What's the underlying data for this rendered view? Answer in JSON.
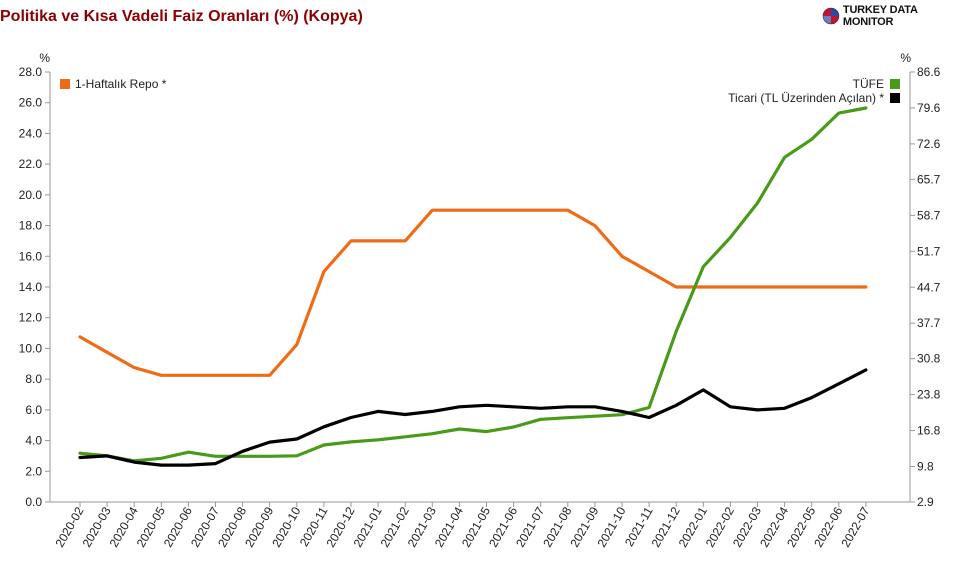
{
  "title": "Politika ve Kısa Vadeli Faiz Oranları (%) (Kopya)",
  "brand": {
    "name": "TURKEY DATA MONITOR"
  },
  "colors": {
    "repo": "#ef6c16",
    "tufe": "#4a9a1a",
    "ticari": "#000000",
    "title": "#8b0000",
    "axis": "#999999"
  },
  "chart_data": {
    "type": "line",
    "title": "Politika ve Kısa Vadeli Faiz Oranları (%) (Kopya)",
    "legend_placement": "top-left and top-right",
    "grid": false,
    "categories": [
      "2020-02",
      "2020-03",
      "2020-04",
      "2020-05",
      "2020-06",
      "2020-07",
      "2020-08",
      "2020-09",
      "2020-10",
      "2020-11",
      "2020-12",
      "2021-01",
      "2021-02",
      "2021-03",
      "2021-04",
      "2021-05",
      "2021-06",
      "2021-07",
      "2021-08",
      "2021-09",
      "2021-10",
      "2021-11",
      "2021-12",
      "2022-01",
      "2022-02",
      "2022-03",
      "2022-04",
      "2022-05",
      "2022-06",
      "2022-07"
    ],
    "y_left": {
      "label": "%",
      "min": 0.0,
      "max": 28.0,
      "ticks": [
        "0.0",
        "2.0",
        "4.0",
        "6.0",
        "8.0",
        "10.0",
        "12.0",
        "14.0",
        "16.0",
        "18.0",
        "20.0",
        "22.0",
        "24.0",
        "26.0",
        "28.0"
      ]
    },
    "y_right": {
      "label": "%",
      "min": 2.9,
      "max": 86.6,
      "ticks": [
        "2.9",
        "9.8",
        "16.8",
        "23.8",
        "30.8",
        "37.7",
        "44.7",
        "51.7",
        "58.7",
        "65.7",
        "72.6",
        "79.6",
        "86.6"
      ]
    },
    "series": [
      {
        "name": "1-Haftalık Repo *",
        "axis": "left",
        "values": [
          10.75,
          9.75,
          8.75,
          8.25,
          8.25,
          8.25,
          8.25,
          8.25,
          10.25,
          15.0,
          17.0,
          17.0,
          17.0,
          19.0,
          19.0,
          19.0,
          19.0,
          19.0,
          19.0,
          18.0,
          16.0,
          15.0,
          14.0,
          14.0,
          14.0,
          14.0,
          14.0,
          14.0,
          14.0,
          14.0
        ]
      },
      {
        "name": "TÜFE",
        "axis": "right",
        "values": [
          12.4,
          11.9,
          10.9,
          11.4,
          12.6,
          11.8,
          11.8,
          11.8,
          11.9,
          14.0,
          14.6,
          15.0,
          15.6,
          16.2,
          17.1,
          16.6,
          17.5,
          19.0,
          19.3,
          19.6,
          19.9,
          21.3,
          36.1,
          48.7,
          54.4,
          61.1,
          70.0,
          73.5,
          78.6,
          79.6
        ]
      },
      {
        "name": "Ticari (TL Üzerinden Açılan) *",
        "axis": "left",
        "values": [
          2.9,
          3.0,
          2.6,
          2.4,
          2.4,
          2.5,
          3.3,
          3.9,
          4.1,
          4.9,
          5.5,
          5.9,
          5.7,
          5.9,
          6.2,
          6.3,
          6.2,
          6.1,
          6.2,
          6.2,
          5.9,
          5.5,
          6.3,
          7.3,
          6.2,
          6.0,
          6.1,
          6.8,
          7.7,
          8.6
        ]
      }
    ]
  }
}
